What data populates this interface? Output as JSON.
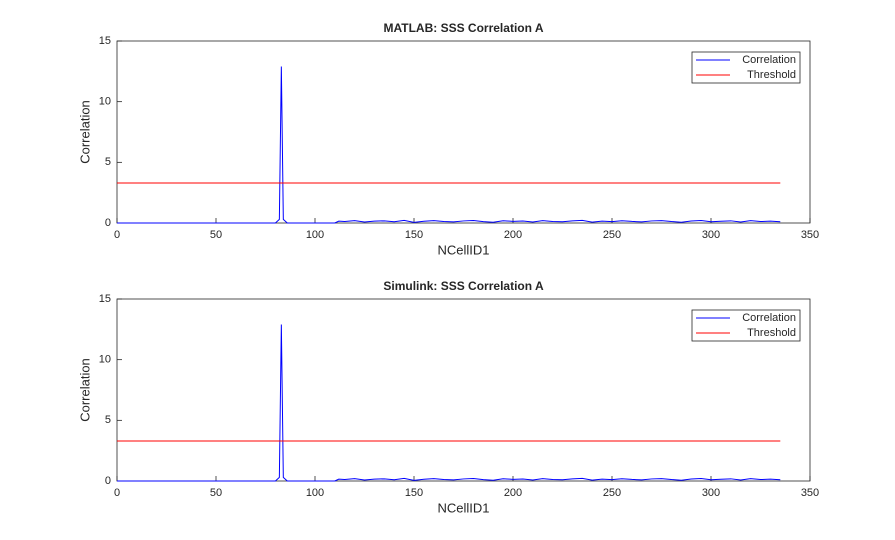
{
  "chart_data": [
    {
      "type": "line",
      "title": "MATLAB: SSS Correlation A",
      "xlabel": "NCellID1",
      "ylabel": "Correlation",
      "xlim": [
        0,
        350
      ],
      "xticks": [
        0,
        50,
        100,
        150,
        200,
        250,
        300,
        350
      ],
      "ylim": [
        0,
        15
      ],
      "yticks": [
        0,
        5,
        10,
        15
      ],
      "legend": "upper right",
      "series": [
        {
          "name": "Correlation",
          "color": "#0000ff",
          "x": [
            0,
            80,
            82,
            83,
            84,
            86,
            110,
            112,
            115,
            120,
            125,
            130,
            135,
            140,
            145,
            150,
            155,
            160,
            165,
            170,
            175,
            180,
            185,
            190,
            195,
            200,
            205,
            210,
            215,
            220,
            225,
            230,
            235,
            240,
            245,
            250,
            255,
            260,
            265,
            270,
            275,
            280,
            285,
            290,
            295,
            300,
            305,
            310,
            315,
            320,
            325,
            330,
            335
          ],
          "values": [
            0,
            0,
            0.3,
            12.9,
            0.3,
            0,
            0,
            0.15,
            0.12,
            0.2,
            0.08,
            0.15,
            0.18,
            0.1,
            0.22,
            0.05,
            0.14,
            0.2,
            0.12,
            0.09,
            0.17,
            0.21,
            0.11,
            0.06,
            0.19,
            0.13,
            0.16,
            0.08,
            0.2,
            0.12,
            0.1,
            0.18,
            0.22,
            0.07,
            0.15,
            0.11,
            0.19,
            0.13,
            0.09,
            0.17,
            0.2,
            0.12,
            0.06,
            0.16,
            0.21,
            0.1,
            0.14,
            0.18,
            0.08,
            0.2,
            0.12,
            0.15,
            0.1
          ]
        },
        {
          "name": "Threshold",
          "color": "#ff0000",
          "x": [
            0,
            335
          ],
          "values": [
            3.3,
            3.3
          ]
        }
      ]
    },
    {
      "type": "line",
      "title": "Simulink: SSS Correlation A",
      "xlabel": "NCellID1",
      "ylabel": "Correlation",
      "xlim": [
        0,
        350
      ],
      "xticks": [
        0,
        50,
        100,
        150,
        200,
        250,
        300,
        350
      ],
      "ylim": [
        0,
        15
      ],
      "yticks": [
        0,
        5,
        10,
        15
      ],
      "legend": "upper right",
      "series": [
        {
          "name": "Correlation",
          "color": "#0000ff",
          "x": [
            0,
            80,
            82,
            83,
            84,
            86,
            110,
            112,
            115,
            120,
            125,
            130,
            135,
            140,
            145,
            150,
            155,
            160,
            165,
            170,
            175,
            180,
            185,
            190,
            195,
            200,
            205,
            210,
            215,
            220,
            225,
            230,
            235,
            240,
            245,
            250,
            255,
            260,
            265,
            270,
            275,
            280,
            285,
            290,
            295,
            300,
            305,
            310,
            315,
            320,
            325,
            330,
            335
          ],
          "values": [
            0,
            0,
            0.3,
            12.9,
            0.3,
            0,
            0,
            0.15,
            0.12,
            0.2,
            0.08,
            0.15,
            0.18,
            0.1,
            0.22,
            0.05,
            0.14,
            0.2,
            0.12,
            0.09,
            0.17,
            0.21,
            0.11,
            0.06,
            0.19,
            0.13,
            0.16,
            0.08,
            0.2,
            0.12,
            0.1,
            0.18,
            0.22,
            0.07,
            0.15,
            0.11,
            0.19,
            0.13,
            0.09,
            0.17,
            0.2,
            0.12,
            0.06,
            0.16,
            0.21,
            0.1,
            0.14,
            0.18,
            0.08,
            0.2,
            0.12,
            0.15,
            0.1
          ]
        },
        {
          "name": "Threshold",
          "color": "#ff0000",
          "x": [
            0,
            335
          ],
          "values": [
            3.3,
            3.3
          ]
        }
      ]
    }
  ]
}
